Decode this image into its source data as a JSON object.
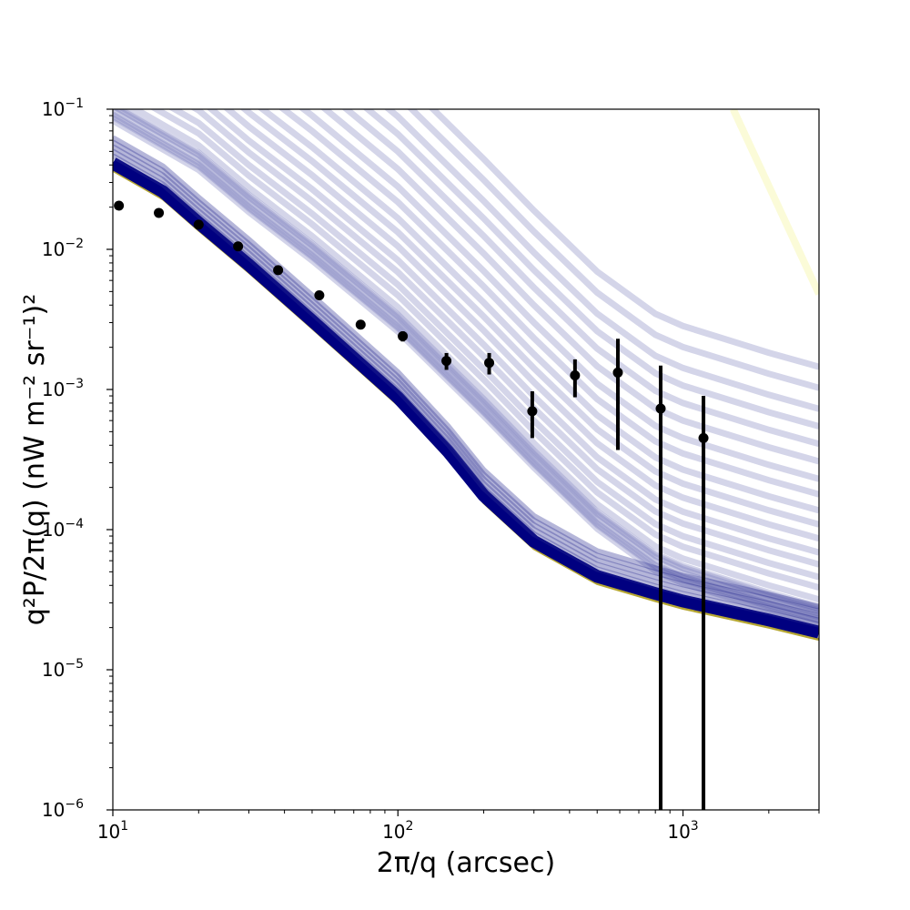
{
  "chart_data": {
    "type": "scatter",
    "title": "",
    "xlabel": "2π/q (arcsec)",
    "ylabel": "q²P/2π(q) (nW m⁻² sr⁻¹)²",
    "xscale": "log",
    "yscale": "log",
    "xlim": [
      10,
      3000
    ],
    "ylim": [
      1e-06,
      0.1
    ],
    "grid": false,
    "legend": "none",
    "x_ticks": [
      {
        "value": 10,
        "base": "10",
        "exp": "1"
      },
      {
        "value": 100,
        "base": "10",
        "exp": "2"
      },
      {
        "value": 1000,
        "base": "10",
        "exp": "3"
      }
    ],
    "y_ticks": [
      {
        "value": 1e-06,
        "base": "10",
        "exp": "−6"
      },
      {
        "value": 1e-05,
        "base": "10",
        "exp": "−5"
      },
      {
        "value": 0.0001,
        "base": "10",
        "exp": "−4"
      },
      {
        "value": 0.001,
        "base": "10",
        "exp": "−3"
      },
      {
        "value": 0.01,
        "base": "10",
        "exp": "−2"
      },
      {
        "value": 0.1,
        "base": "10",
        "exp": "−1"
      }
    ],
    "points": [
      {
        "x": 10.5,
        "y": 0.0205,
        "ylo": 0.02,
        "yhi": 0.021
      },
      {
        "x": 14.5,
        "y": 0.0182,
        "ylo": 0.0178,
        "yhi": 0.0186
      },
      {
        "x": 20.0,
        "y": 0.015,
        "ylo": 0.0146,
        "yhi": 0.0154
      },
      {
        "x": 27.5,
        "y": 0.0105,
        "ylo": 0.0102,
        "yhi": 0.0108
      },
      {
        "x": 38.0,
        "y": 0.0071,
        "ylo": 0.0069,
        "yhi": 0.0073
      },
      {
        "x": 53.0,
        "y": 0.0047,
        "ylo": 0.0045,
        "yhi": 0.0049
      },
      {
        "x": 74.0,
        "y": 0.0029,
        "ylo": 0.0028,
        "yhi": 0.003
      },
      {
        "x": 104.0,
        "y": 0.0024,
        "ylo": 0.0022,
        "yhi": 0.0026
      },
      {
        "x": 148.0,
        "y": 0.0016,
        "ylo": 0.00138,
        "yhi": 0.00182
      },
      {
        "x": 209.0,
        "y": 0.00155,
        "ylo": 0.00128,
        "yhi": 0.00182
      },
      {
        "x": 296.0,
        "y": 0.0007,
        "ylo": 0.00045,
        "yhi": 0.00097
      },
      {
        "x": 418.0,
        "y": 0.00126,
        "ylo": 0.00088,
        "yhi": 0.00164
      },
      {
        "x": 591.0,
        "y": 0.00132,
        "ylo": 0.00037,
        "yhi": 0.0023
      },
      {
        "x": 835.0,
        "y": 0.00073,
        "ylo": 1e-07,
        "yhi": 0.00148
      },
      {
        "x": 1180.0,
        "y": 0.00045,
        "ylo": 1e-07,
        "yhi": 0.0009
      }
    ],
    "model_lines": {
      "color": "#000080",
      "outline_color": "#b5a632",
      "faint_line_color": "#c5c7e2",
      "yellow_line_color": "#fbfbd8",
      "core_curve": [
        [
          10,
          0.04
        ],
        [
          15,
          0.025
        ],
        [
          20,
          0.015
        ],
        [
          30,
          0.0075
        ],
        [
          50,
          0.003
        ],
        [
          100,
          0.00085
        ],
        [
          150,
          0.00035
        ],
        [
          200,
          0.00017
        ],
        [
          300,
          8e-05
        ],
        [
          500,
          4.5e-05
        ],
        [
          800,
          3.4e-05
        ],
        [
          1000,
          3e-05
        ],
        [
          2000,
          2.2e-05
        ],
        [
          3000,
          1.8e-05
        ]
      ],
      "mid_curve": [
        [
          10,
          0.09
        ],
        [
          20,
          0.04
        ],
        [
          30,
          0.02
        ],
        [
          50,
          0.009
        ],
        [
          100,
          0.0028
        ],
        [
          200,
          0.0007
        ],
        [
          300,
          0.0003
        ],
        [
          500,
          0.00011
        ],
        [
          800,
          5.5e-05
        ],
        [
          1000,
          4.5e-05
        ],
        [
          2000,
          2.9e-05
        ],
        [
          3000,
          2.3e-05
        ]
      ],
      "faint_offsets": [
        0,
        0.15,
        0.28,
        0.45,
        0.6,
        0.78,
        0.95,
        1.15,
        1.35,
        1.55,
        1.78,
        2.0,
        2.25,
        2.5,
        2.75,
        3.0,
        3.3,
        3.6
      ],
      "yellow_curve": [
        [
          1500,
          0.1
        ],
        [
          3000,
          0.0048
        ]
      ]
    }
  }
}
